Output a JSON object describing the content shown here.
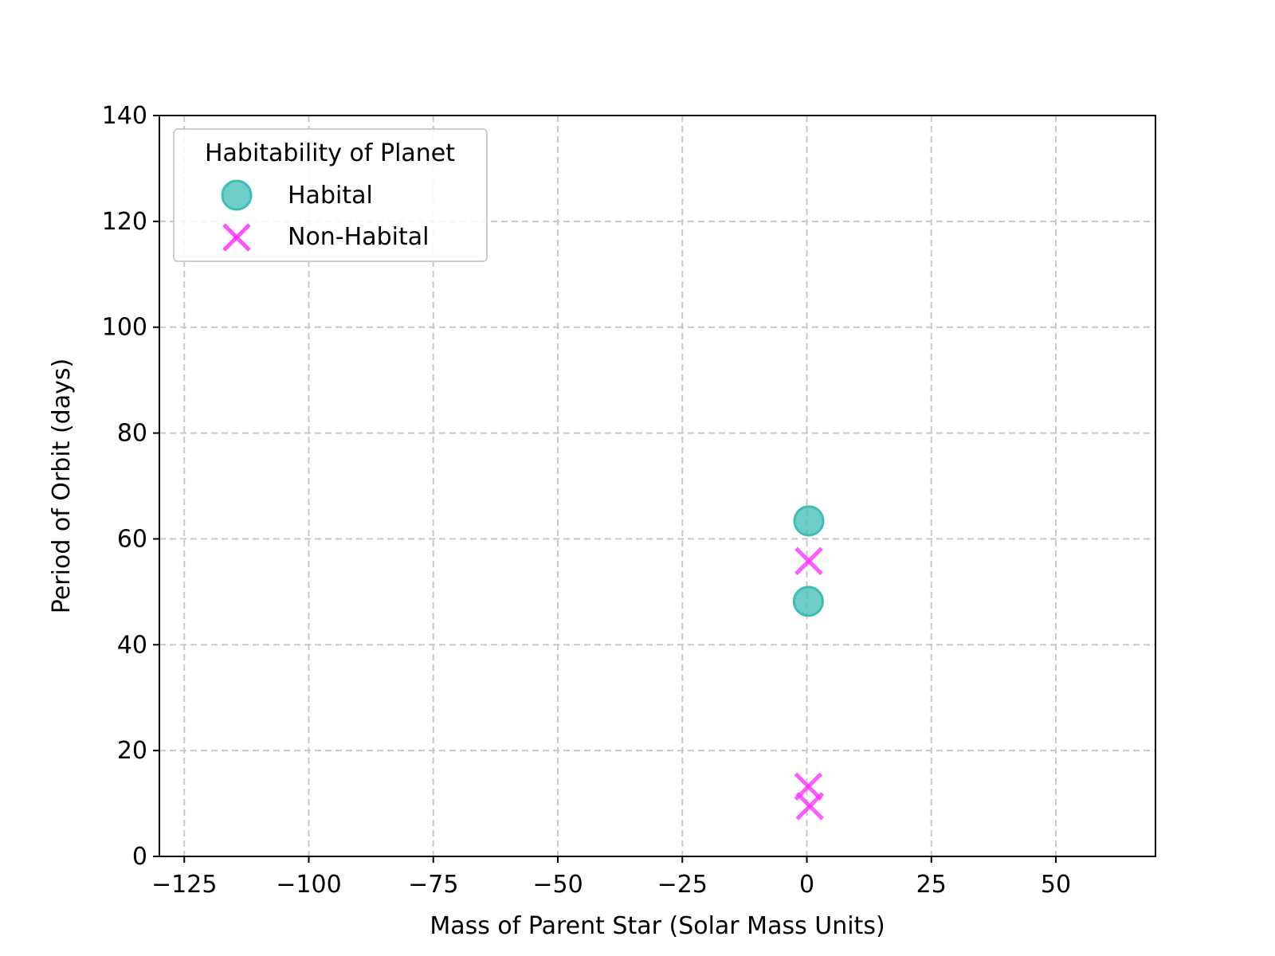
{
  "chart_data": {
    "type": "scatter",
    "title": "",
    "xlabel": "Mass of Parent Star (Solar Mass Units)",
    "ylabel": "Period of Orbit (days)",
    "xlim": [
      -130,
      70
    ],
    "ylim": [
      0,
      140
    ],
    "xticks": [
      -125,
      -100,
      -75,
      -50,
      -25,
      0,
      25,
      50
    ],
    "xtick_labels": [
      "−125",
      "−100",
      "−75",
      "−50",
      "−25",
      "0",
      "25",
      "50"
    ],
    "yticks": [
      0,
      20,
      40,
      60,
      80,
      100,
      120,
      140
    ],
    "ytick_labels": [
      "0",
      "20",
      "40",
      "60",
      "80",
      "100",
      "120",
      "140"
    ],
    "grid": true,
    "legend": {
      "title": "Habitability of Planet",
      "placement": "top-left"
    },
    "series": [
      {
        "name": "Habital",
        "marker": "circle",
        "color": "#3dbdb4",
        "points": [
          {
            "x": 0.4,
            "y": 63.4
          },
          {
            "x": 0.3,
            "y": 48.2
          }
        ]
      },
      {
        "name": "Non-Habital",
        "marker": "x",
        "color": "#ff33ff",
        "points": [
          {
            "x": 0.4,
            "y": 55.8
          },
          {
            "x": 0.3,
            "y": 13.2
          },
          {
            "x": 0.6,
            "y": 9.5
          }
        ]
      }
    ]
  }
}
